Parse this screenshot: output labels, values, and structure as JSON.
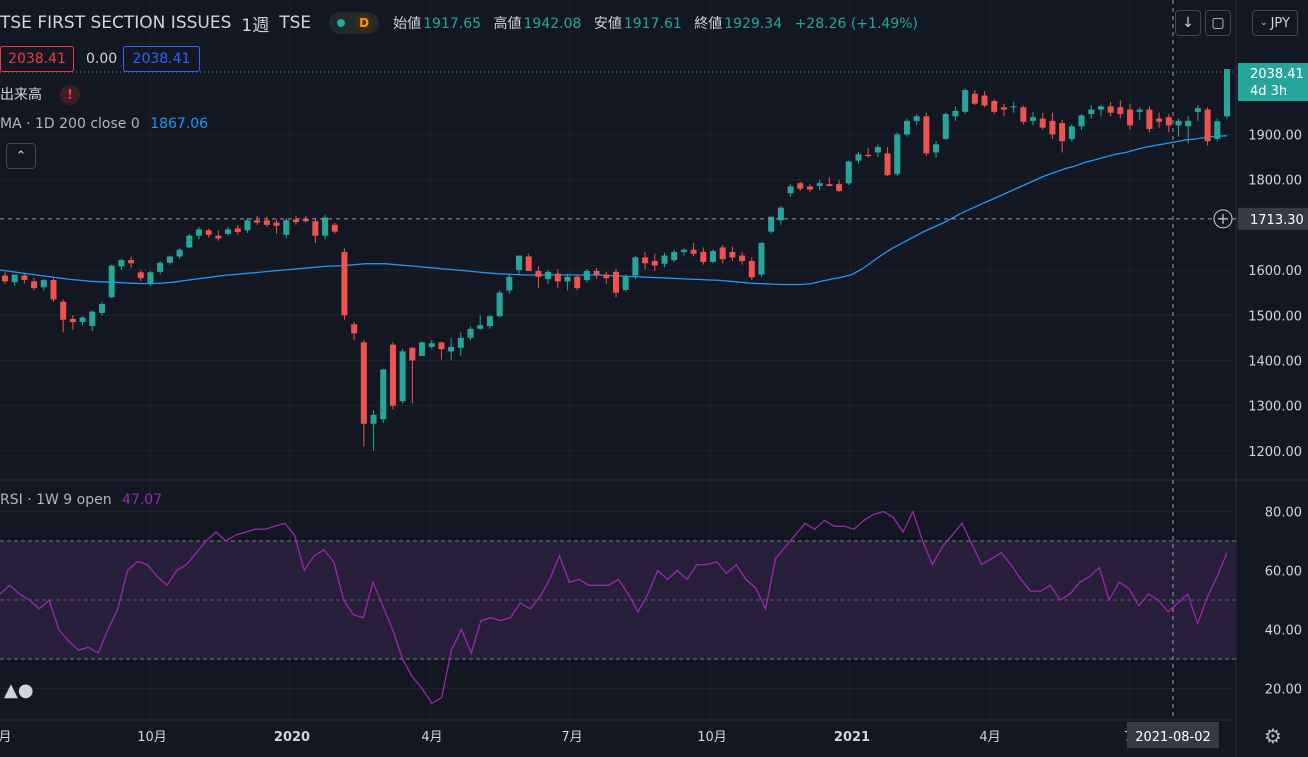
{
  "header": {
    "symbol": "TSE FIRST SECTION ISSUES",
    "interval": "1週",
    "exchange": "TSE",
    "d_badge": "D",
    "open_label": "始値",
    "open": "1917.65",
    "high_label": "高値",
    "high": "1942.08",
    "low_label": "安値",
    "low": "1917.61",
    "close_label": "終値",
    "close": "1929.34",
    "change": "+28.26 (+1.49%)",
    "currency": "JPY",
    "scroll_icon": "arrow-down-icon",
    "fullscreen_icon": "fullscreen-icon"
  },
  "legend": {
    "bid": "2038.41",
    "spread": "0.00",
    "ask": "2038.41",
    "volume_label": "出来高",
    "ma_label": "MA · 1D 200 close 0",
    "ma_value": "1867.06",
    "rsi_label": "RSI · 1W 9 open",
    "rsi_value": "47.07"
  },
  "colors": {
    "up": "#26a69a",
    "down": "#ef5350",
    "ma": "#2196f3",
    "rsi": "#9c27b0",
    "rsi_band": "#2a1f3d",
    "bg": "#131722",
    "grid": "#1e222d"
  },
  "price_tag": {
    "value": "2038.41",
    "countdown": "4d 3h"
  },
  "crosshair": {
    "price": "1713.30",
    "date": "2021-08-02"
  },
  "chart_data": {
    "type": "candlestick",
    "price_axis": {
      "range": [
        1140,
        2100
      ],
      "ticks": [
        "2038.41",
        "1900.00",
        "1800.00",
        "1713.30",
        "1600.00",
        "1500.00",
        "1400.00",
        "1300.00",
        "1200.00"
      ],
      "tick_values": [
        1900,
        1800,
        1600,
        1500,
        1400,
        1300,
        1200
      ]
    },
    "x_axis_labels": [
      "月",
      "10月",
      "2020",
      "4月",
      "7月",
      "10月",
      "2021",
      "4月",
      "7"
    ],
    "candles": [
      {
        "o": 1588,
        "h": 1595,
        "l": 1570,
        "c": 1575
      },
      {
        "o": 1573,
        "h": 1590,
        "l": 1565,
        "c": 1590
      },
      {
        "o": 1588,
        "h": 1592,
        "l": 1570,
        "c": 1578
      },
      {
        "o": 1575,
        "h": 1582,
        "l": 1555,
        "c": 1560
      },
      {
        "o": 1562,
        "h": 1580,
        "l": 1555,
        "c": 1578
      },
      {
        "o": 1578,
        "h": 1582,
        "l": 1530,
        "c": 1535
      },
      {
        "o": 1530,
        "h": 1535,
        "l": 1462,
        "c": 1490
      },
      {
        "o": 1492,
        "h": 1500,
        "l": 1468,
        "c": 1485
      },
      {
        "o": 1485,
        "h": 1498,
        "l": 1478,
        "c": 1495
      },
      {
        "o": 1476,
        "h": 1510,
        "l": 1465,
        "c": 1508
      },
      {
        "o": 1505,
        "h": 1530,
        "l": 1500,
        "c": 1525
      },
      {
        "o": 1540,
        "h": 1612,
        "l": 1538,
        "c": 1610
      },
      {
        "o": 1608,
        "h": 1625,
        "l": 1600,
        "c": 1622
      },
      {
        "o": 1622,
        "h": 1630,
        "l": 1605,
        "c": 1615
      },
      {
        "o": 1595,
        "h": 1600,
        "l": 1575,
        "c": 1582
      },
      {
        "o": 1570,
        "h": 1598,
        "l": 1565,
        "c": 1595
      },
      {
        "o": 1596,
        "h": 1620,
        "l": 1590,
        "c": 1616
      },
      {
        "o": 1616,
        "h": 1632,
        "l": 1612,
        "c": 1630
      },
      {
        "o": 1630,
        "h": 1648,
        "l": 1625,
        "c": 1645
      },
      {
        "o": 1650,
        "h": 1680,
        "l": 1648,
        "c": 1676
      },
      {
        "o": 1676,
        "h": 1695,
        "l": 1668,
        "c": 1690
      },
      {
        "o": 1688,
        "h": 1692,
        "l": 1672,
        "c": 1678
      },
      {
        "o": 1676,
        "h": 1688,
        "l": 1665,
        "c": 1670
      },
      {
        "o": 1680,
        "h": 1695,
        "l": 1676,
        "c": 1690
      },
      {
        "o": 1692,
        "h": 1700,
        "l": 1678,
        "c": 1684
      },
      {
        "o": 1688,
        "h": 1715,
        "l": 1682,
        "c": 1710
      },
      {
        "o": 1710,
        "h": 1720,
        "l": 1700,
        "c": 1705
      },
      {
        "o": 1710,
        "h": 1718,
        "l": 1695,
        "c": 1700
      },
      {
        "o": 1705,
        "h": 1712,
        "l": 1680,
        "c": 1698
      },
      {
        "o": 1678,
        "h": 1715,
        "l": 1670,
        "c": 1710
      },
      {
        "o": 1712,
        "h": 1720,
        "l": 1700,
        "c": 1706
      },
      {
        "o": 1714,
        "h": 1720,
        "l": 1705,
        "c": 1708
      },
      {
        "o": 1708,
        "h": 1715,
        "l": 1660,
        "c": 1676
      },
      {
        "o": 1676,
        "h": 1722,
        "l": 1668,
        "c": 1716
      },
      {
        "o": 1700,
        "h": 1705,
        "l": 1680,
        "c": 1685
      },
      {
        "o": 1640,
        "h": 1648,
        "l": 1490,
        "c": 1500
      },
      {
        "o": 1480,
        "h": 1485,
        "l": 1445,
        "c": 1460
      },
      {
        "o": 1440,
        "h": 1445,
        "l": 1210,
        "c": 1260
      },
      {
        "o": 1260,
        "h": 1290,
        "l": 1200,
        "c": 1280
      },
      {
        "o": 1270,
        "h": 1382,
        "l": 1262,
        "c": 1380
      },
      {
        "o": 1435,
        "h": 1440,
        "l": 1292,
        "c": 1300
      },
      {
        "o": 1310,
        "h": 1425,
        "l": 1305,
        "c": 1420
      },
      {
        "o": 1428,
        "h": 1430,
        "l": 1305,
        "c": 1400
      },
      {
        "o": 1410,
        "h": 1442,
        "l": 1410,
        "c": 1440
      },
      {
        "o": 1430,
        "h": 1445,
        "l": 1425,
        "c": 1438
      },
      {
        "o": 1440,
        "h": 1442,
        "l": 1402,
        "c": 1425
      },
      {
        "o": 1420,
        "h": 1450,
        "l": 1400,
        "c": 1430
      },
      {
        "o": 1428,
        "h": 1462,
        "l": 1410,
        "c": 1450
      },
      {
        "o": 1450,
        "h": 1475,
        "l": 1445,
        "c": 1470
      },
      {
        "o": 1470,
        "h": 1500,
        "l": 1468,
        "c": 1478
      },
      {
        "o": 1476,
        "h": 1500,
        "l": 1470,
        "c": 1498
      },
      {
        "o": 1498,
        "h": 1555,
        "l": 1495,
        "c": 1550
      },
      {
        "o": 1555,
        "h": 1590,
        "l": 1548,
        "c": 1585
      },
      {
        "o": 1600,
        "h": 1628,
        "l": 1588,
        "c": 1632
      },
      {
        "o": 1630,
        "h": 1636,
        "l": 1600,
        "c": 1598
      },
      {
        "o": 1598,
        "h": 1608,
        "l": 1560,
        "c": 1585
      },
      {
        "o": 1580,
        "h": 1600,
        "l": 1570,
        "c": 1596
      },
      {
        "o": 1592,
        "h": 1602,
        "l": 1560,
        "c": 1575
      },
      {
        "o": 1575,
        "h": 1592,
        "l": 1555,
        "c": 1585
      },
      {
        "o": 1585,
        "h": 1590,
        "l": 1555,
        "c": 1560
      },
      {
        "o": 1578,
        "h": 1602,
        "l": 1572,
        "c": 1598
      },
      {
        "o": 1598,
        "h": 1605,
        "l": 1580,
        "c": 1590
      },
      {
        "o": 1590,
        "h": 1596,
        "l": 1570,
        "c": 1582
      },
      {
        "o": 1596,
        "h": 1602,
        "l": 1540,
        "c": 1550
      },
      {
        "o": 1556,
        "h": 1590,
        "l": 1552,
        "c": 1585
      },
      {
        "o": 1588,
        "h": 1632,
        "l": 1580,
        "c": 1628
      },
      {
        "o": 1628,
        "h": 1640,
        "l": 1602,
        "c": 1615
      },
      {
        "o": 1620,
        "h": 1636,
        "l": 1598,
        "c": 1610
      },
      {
        "o": 1614,
        "h": 1638,
        "l": 1606,
        "c": 1632
      },
      {
        "o": 1622,
        "h": 1645,
        "l": 1618,
        "c": 1640
      },
      {
        "o": 1640,
        "h": 1648,
        "l": 1632,
        "c": 1645
      },
      {
        "o": 1645,
        "h": 1660,
        "l": 1630,
        "c": 1636
      },
      {
        "o": 1640,
        "h": 1650,
        "l": 1612,
        "c": 1618
      },
      {
        "o": 1618,
        "h": 1646,
        "l": 1615,
        "c": 1642
      },
      {
        "o": 1650,
        "h": 1655,
        "l": 1615,
        "c": 1624
      },
      {
        "o": 1640,
        "h": 1652,
        "l": 1620,
        "c": 1628
      },
      {
        "o": 1632,
        "h": 1640,
        "l": 1612,
        "c": 1620
      },
      {
        "o": 1620,
        "h": 1628,
        "l": 1578,
        "c": 1584
      },
      {
        "o": 1590,
        "h": 1662,
        "l": 1585,
        "c": 1660
      },
      {
        "o": 1685,
        "h": 1718,
        "l": 1680,
        "c": 1718
      },
      {
        "o": 1710,
        "h": 1742,
        "l": 1700,
        "c": 1738
      },
      {
        "o": 1770,
        "h": 1790,
        "l": 1762,
        "c": 1785
      },
      {
        "o": 1792,
        "h": 1795,
        "l": 1775,
        "c": 1780
      },
      {
        "o": 1785,
        "h": 1790,
        "l": 1772,
        "c": 1778
      },
      {
        "o": 1786,
        "h": 1800,
        "l": 1776,
        "c": 1792
      },
      {
        "o": 1790,
        "h": 1805,
        "l": 1785,
        "c": 1786
      },
      {
        "o": 1790,
        "h": 1800,
        "l": 1772,
        "c": 1775
      },
      {
        "o": 1792,
        "h": 1842,
        "l": 1788,
        "c": 1840
      },
      {
        "o": 1842,
        "h": 1862,
        "l": 1835,
        "c": 1856
      },
      {
        "o": 1855,
        "h": 1870,
        "l": 1848,
        "c": 1852
      },
      {
        "o": 1860,
        "h": 1878,
        "l": 1850,
        "c": 1872
      },
      {
        "o": 1858,
        "h": 1872,
        "l": 1808,
        "c": 1810
      },
      {
        "o": 1812,
        "h": 1905,
        "l": 1808,
        "c": 1900
      },
      {
        "o": 1900,
        "h": 1935,
        "l": 1895,
        "c": 1930
      },
      {
        "o": 1930,
        "h": 1945,
        "l": 1920,
        "c": 1940
      },
      {
        "o": 1940,
        "h": 1948,
        "l": 1852,
        "c": 1858
      },
      {
        "o": 1860,
        "h": 1885,
        "l": 1848,
        "c": 1878
      },
      {
        "o": 1890,
        "h": 1948,
        "l": 1888,
        "c": 1945
      },
      {
        "o": 1940,
        "h": 1962,
        "l": 1930,
        "c": 1952
      },
      {
        "o": 1950,
        "h": 2002,
        "l": 1945,
        "c": 1998
      },
      {
        "o": 1990,
        "h": 1998,
        "l": 1965,
        "c": 1968
      },
      {
        "o": 1986,
        "h": 1996,
        "l": 1960,
        "c": 1964
      },
      {
        "o": 1974,
        "h": 1978,
        "l": 1945,
        "c": 1950
      },
      {
        "o": 1960,
        "h": 1968,
        "l": 1940,
        "c": 1955
      },
      {
        "o": 1960,
        "h": 1972,
        "l": 1948,
        "c": 1962
      },
      {
        "o": 1960,
        "h": 1964,
        "l": 1922,
        "c": 1928
      },
      {
        "o": 1930,
        "h": 1950,
        "l": 1920,
        "c": 1938
      },
      {
        "o": 1935,
        "h": 1948,
        "l": 1910,
        "c": 1915
      },
      {
        "o": 1930,
        "h": 1948,
        "l": 1890,
        "c": 1900
      },
      {
        "o": 1925,
        "h": 1932,
        "l": 1860,
        "c": 1885
      },
      {
        "o": 1890,
        "h": 1922,
        "l": 1884,
        "c": 1918
      },
      {
        "o": 1918,
        "h": 1945,
        "l": 1910,
        "c": 1942
      },
      {
        "o": 1945,
        "h": 1965,
        "l": 1935,
        "c": 1955
      },
      {
        "o": 1955,
        "h": 1965,
        "l": 1940,
        "c": 1962
      },
      {
        "o": 1962,
        "h": 1972,
        "l": 1940,
        "c": 1948
      },
      {
        "o": 1960,
        "h": 1975,
        "l": 1935,
        "c": 1945
      },
      {
        "o": 1955,
        "h": 1968,
        "l": 1910,
        "c": 1920
      },
      {
        "o": 1950,
        "h": 1960,
        "l": 1932,
        "c": 1955
      },
      {
        "o": 1955,
        "h": 1962,
        "l": 1905,
        "c": 1912
      },
      {
        "o": 1935,
        "h": 1948,
        "l": 1915,
        "c": 1928
      },
      {
        "o": 1938,
        "h": 1945,
        "l": 1905,
        "c": 1920
      },
      {
        "o": 1920,
        "h": 1935,
        "l": 1895,
        "c": 1930
      },
      {
        "o": 1918,
        "h": 1940,
        "l": 1880,
        "c": 1930
      },
      {
        "o": 1950,
        "h": 1965,
        "l": 1930,
        "c": 1958
      },
      {
        "o": 1955,
        "h": 1960,
        "l": 1875,
        "c": 1885
      },
      {
        "o": 1890,
        "h": 1935,
        "l": 1885,
        "c": 1929
      },
      {
        "o": 1940,
        "h": 2042,
        "l": 1935,
        "c": 2038
      }
    ],
    "ma": [
      1600,
      1597,
      1594,
      1591,
      1588,
      1585,
      1582,
      1579,
      1577,
      1575,
      1574,
      1573,
      1572,
      1571,
      1570,
      1570,
      1571,
      1573,
      1576,
      1579,
      1582,
      1585,
      1588,
      1590,
      1592,
      1594,
      1596,
      1598,
      1600,
      1602,
      1604,
      1606,
      1608,
      1609,
      1610,
      1612,
      1614,
      1614,
      1614,
      1612,
      1610,
      1608,
      1606,
      1604,
      1602,
      1600,
      1598,
      1596,
      1594,
      1592,
      1591,
      1590,
      1589,
      1589,
      1589,
      1589,
      1589,
      1589,
      1589,
      1589,
      1588,
      1587,
      1586,
      1585,
      1584,
      1583,
      1582,
      1581,
      1580,
      1579,
      1578,
      1577,
      1575,
      1573,
      1571,
      1570,
      1569,
      1568,
      1568,
      1568,
      1570,
      1575,
      1580,
      1584,
      1590,
      1602,
      1618,
      1634,
      1648,
      1660,
      1672,
      1684,
      1694,
      1704,
      1716,
      1728,
      1738,
      1748,
      1758,
      1768,
      1778,
      1788,
      1798,
      1808,
      1816,
      1824,
      1830,
      1838,
      1844,
      1850,
      1856,
      1860,
      1866,
      1872,
      1876,
      1880,
      1884,
      1888,
      1890,
      1894,
      1896,
      1897
    ],
    "rsi": {
      "range": [
        10,
        90
      ],
      "ticks": [
        80,
        60,
        40,
        20
      ],
      "band": [
        30,
        70
      ],
      "mid": 50,
      "values": [
        52,
        55,
        52,
        50,
        47,
        50,
        40,
        36,
        33,
        34,
        32,
        40,
        47,
        60,
        63,
        62,
        58,
        55,
        60,
        62,
        66,
        70,
        73,
        70,
        72,
        73,
        74,
        74,
        75,
        76,
        72,
        60,
        65,
        67,
        63,
        50,
        45,
        44,
        56,
        48,
        40,
        30,
        24,
        20,
        15,
        17,
        33,
        40,
        32,
        43,
        44,
        43,
        44,
        49,
        47,
        51,
        57,
        65,
        56,
        57,
        55,
        55,
        55,
        57,
        52,
        46,
        52,
        60,
        57,
        60,
        57,
        62,
        62,
        63,
        59,
        62,
        57,
        54,
        47,
        64,
        68,
        72,
        76,
        74,
        77,
        75,
        75,
        74,
        77,
        79,
        80,
        78,
        73,
        80,
        70,
        62,
        68,
        72,
        76,
        69,
        62,
        64,
        66,
        62,
        57,
        53,
        53,
        55,
        50,
        52,
        56,
        58,
        61,
        50,
        56,
        54,
        48,
        52,
        50,
        46,
        49,
        52,
        42,
        51,
        58,
        66
      ]
    }
  }
}
